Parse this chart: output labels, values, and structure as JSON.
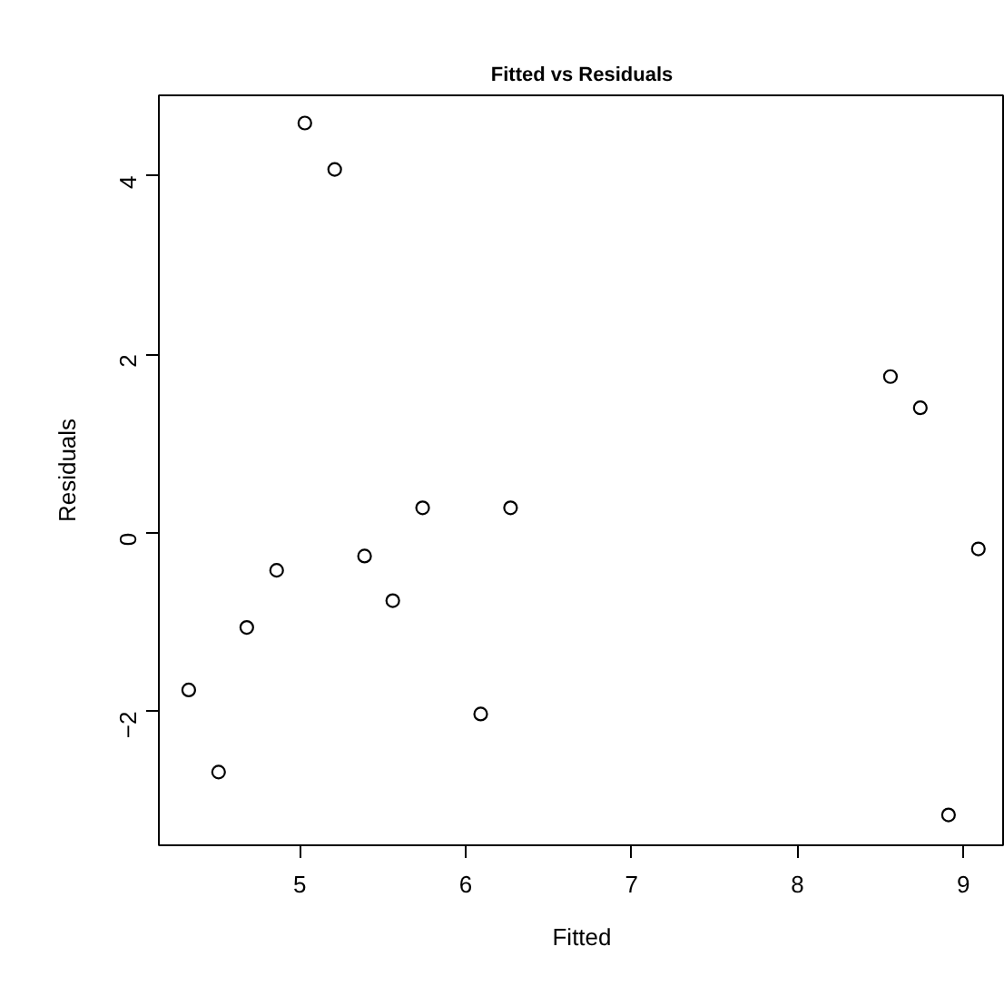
{
  "chart_data": {
    "type": "scatter",
    "title": "Fitted vs Residuals",
    "xlabel": "Fitted",
    "ylabel": "Residuals",
    "x": [
      5.03,
      5.21,
      8.56,
      8.74,
      5.74,
      6.27,
      5.39,
      4.86,
      5.56,
      4.68,
      4.33,
      4.51,
      6.09,
      8.91,
      9.09
    ],
    "series": [
      {
        "color": "#000000",
        "values": [
          4.59,
          4.07,
          1.75,
          1.4,
          0.28,
          0.28,
          -0.26,
          -0.42,
          -0.76,
          -1.06,
          -1.76,
          -2.68,
          -2.03,
          -3.16,
          -0.18
        ]
      }
    ],
    "xlim": [
      4.15,
      9.25
    ],
    "ylim": [
      -3.5,
      4.9
    ],
    "xticks": [
      5,
      6,
      7,
      8,
      9
    ],
    "yticks": [
      -2,
      0,
      2,
      4
    ],
    "marker": "circle"
  }
}
